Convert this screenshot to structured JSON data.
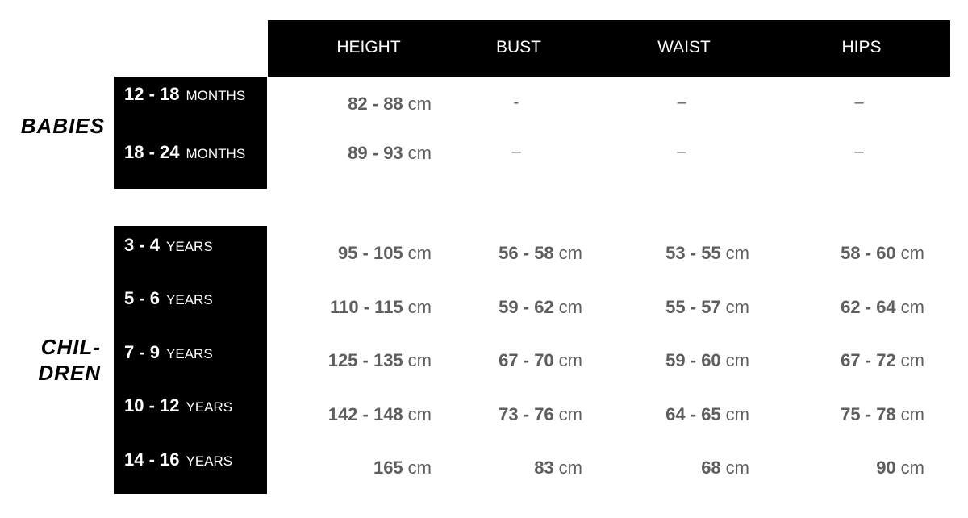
{
  "columns": [
    "HEIGHT",
    "BUST",
    "WAIST",
    "HIPS"
  ],
  "groups": [
    {
      "label": "BABIES",
      "label_lines": [
        "BABIES"
      ],
      "rows": [
        {
          "range": "12 - 18",
          "unit": "MONTHS",
          "cells": [
            {
              "value": "82 - 88",
              "unit": "cm"
            },
            {
              "dash": "-"
            },
            {
              "dash": "–"
            },
            {
              "dash": "–"
            }
          ]
        },
        {
          "range": "18 - 24",
          "unit": "MONTHS",
          "cells": [
            {
              "value": "89 - 93",
              "unit": "cm"
            },
            {
              "dash": "–"
            },
            {
              "dash": "–"
            },
            {
              "dash": "–"
            }
          ]
        }
      ]
    },
    {
      "label": "CHILDREN",
      "label_lines": [
        "CHIL-",
        "DREN"
      ],
      "rows": [
        {
          "range": "3 - 4",
          "unit": "YEARS",
          "cells": [
            {
              "value": "95 - 105",
              "unit": "cm"
            },
            {
              "value": "56 - 58",
              "unit": "cm"
            },
            {
              "value": "53 - 55",
              "unit": "cm"
            },
            {
              "value": "58 - 60",
              "unit": "cm"
            }
          ]
        },
        {
          "range": "5 - 6",
          "unit": "YEARS",
          "cells": [
            {
              "value": "110 - 115",
              "unit": "cm"
            },
            {
              "value": "59 - 62",
              "unit": "cm"
            },
            {
              "value": "55 - 57",
              "unit": "cm"
            },
            {
              "value": "62 - 64",
              "unit": "cm"
            }
          ]
        },
        {
          "range": "7 - 9",
          "unit": "YEARS",
          "cells": [
            {
              "value": "125 - 135",
              "unit": "cm"
            },
            {
              "value": "67 - 70",
              "unit": "cm"
            },
            {
              "value": "59 - 60",
              "unit": "cm"
            },
            {
              "value": "67 - 72",
              "unit": "cm"
            }
          ]
        },
        {
          "range": "10 - 12",
          "unit": "YEARS",
          "cells": [
            {
              "value": "142 - 148",
              "unit": "cm"
            },
            {
              "value": "73 - 76",
              "unit": "cm"
            },
            {
              "value": "64 - 65",
              "unit": "cm"
            },
            {
              "value": "75 - 78",
              "unit": "cm"
            }
          ]
        },
        {
          "range": "14 - 16",
          "unit": "YEARS",
          "cells": [
            {
              "value": "165",
              "unit": "cm"
            },
            {
              "value": "83",
              "unit": "cm"
            },
            {
              "value": "68",
              "unit": "cm"
            },
            {
              "value": "90",
              "unit": "cm"
            }
          ]
        }
      ]
    }
  ]
}
